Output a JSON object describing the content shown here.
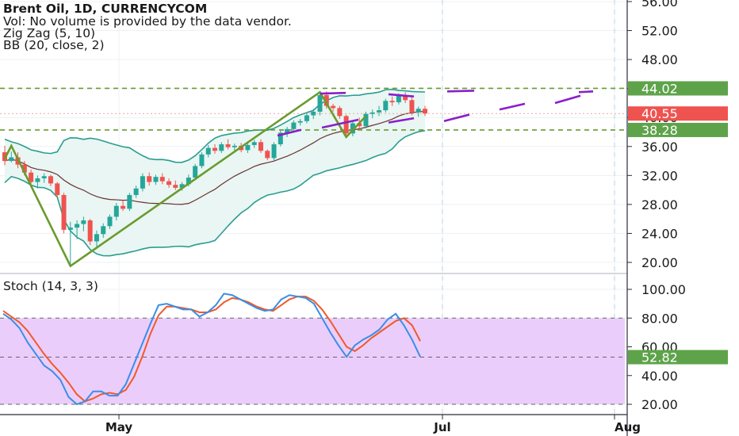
{
  "header": {
    "title": "Brent Oil, 1D, CURRENCYCOM",
    "vol": "Vol: No volume is provided by the data vendor.",
    "zigzag": "Zig Zag (5, 10)",
    "bb": "BB (20, close, 2)"
  },
  "stoch_panel": {
    "label": "Stoch (14, 3, 3)"
  },
  "colors": {
    "up": "#26a69a",
    "down": "#ef5350",
    "zigzag": "#6a9b2e",
    "bb_band": "#2a9d8f",
    "bb_fill": "#e9f6f3",
    "bb_basis": "#6b3030",
    "pattern": "#8a1fc9",
    "level_badge": "#5ea34a",
    "price_badge": "#ef5350",
    "stoch_k": "#3a8ee6",
    "stoch_d": "#f05a2a",
    "stoch_bg": "#ebcdfb"
  },
  "chart_data": [
    {
      "type": "candlestick",
      "title": "Brent Oil, 1D, CURRENCYCOM",
      "y_ticks": [
        "56.00",
        "52.00",
        "48.00",
        "44.00",
        "40.00",
        "36.00",
        "32.00",
        "28.00",
        "24.00",
        "20.00"
      ],
      "x_ticks": [
        "May",
        "Jul",
        "Aug"
      ],
      "ylim": [
        18.5,
        56.5
      ],
      "current_price": "40.55",
      "levels": [
        {
          "label": "44.02",
          "value": 44.02
        },
        {
          "label": "38.28",
          "value": 38.28
        }
      ],
      "candles": [
        [
          35.2,
          36.1,
          33.4,
          34.0
        ],
        [
          34.0,
          35.3,
          33.8,
          34.5
        ],
        [
          34.5,
          35.2,
          33.0,
          33.5
        ],
        [
          33.5,
          34.0,
          32.0,
          32.4
        ],
        [
          32.4,
          32.8,
          30.8,
          31.1
        ],
        [
          31.1,
          32.0,
          30.2,
          31.6
        ],
        [
          31.6,
          32.3,
          31.0,
          31.9
        ],
        [
          31.9,
          32.1,
          30.5,
          30.9
        ],
        [
          30.9,
          31.1,
          29.0,
          29.3
        ],
        [
          29.3,
          29.6,
          24.0,
          24.5
        ],
        [
          24.5,
          25.6,
          19.5,
          24.8
        ],
        [
          24.8,
          25.8,
          23.2,
          25.3
        ],
        [
          25.3,
          26.3,
          24.3,
          25.8
        ],
        [
          25.8,
          26.0,
          22.4,
          22.9
        ],
        [
          22.9,
          24.4,
          22.1,
          23.9
        ],
        [
          23.9,
          25.4,
          23.4,
          25.0
        ],
        [
          25.0,
          26.6,
          24.6,
          26.3
        ],
        [
          26.3,
          28.2,
          25.8,
          27.8
        ],
        [
          27.8,
          28.6,
          27.1,
          27.4
        ],
        [
          27.4,
          29.6,
          27.1,
          29.3
        ],
        [
          29.3,
          30.6,
          28.9,
          30.2
        ],
        [
          30.2,
          32.3,
          29.8,
          31.9
        ],
        [
          31.9,
          32.4,
          30.6,
          31.1
        ],
        [
          31.1,
          32.1,
          30.7,
          31.8
        ],
        [
          31.8,
          32.3,
          30.8,
          31.2
        ],
        [
          31.2,
          31.6,
          30.3,
          30.7
        ],
        [
          30.7,
          31.3,
          30.0,
          30.3
        ],
        [
          30.3,
          31.1,
          29.9,
          30.8
        ],
        [
          30.8,
          32.1,
          30.5,
          31.7
        ],
        [
          31.7,
          33.6,
          31.5,
          33.3
        ],
        [
          33.3,
          35.2,
          33.0,
          34.9
        ],
        [
          34.9,
          36.2,
          34.5,
          35.8
        ],
        [
          35.8,
          36.3,
          35.0,
          35.4
        ],
        [
          35.4,
          36.6,
          35.1,
          36.3
        ],
        [
          36.3,
          37.0,
          35.6,
          35.9
        ],
        [
          35.9,
          36.4,
          35.3,
          36.1
        ],
        [
          36.1,
          36.5,
          35.2,
          35.5
        ],
        [
          35.5,
          36.4,
          35.1,
          36.2
        ],
        [
          36.2,
          36.9,
          35.8,
          36.6
        ],
        [
          36.6,
          37.0,
          35.1,
          35.4
        ],
        [
          35.4,
          35.6,
          34.1,
          34.4
        ],
        [
          34.4,
          36.6,
          34.1,
          36.3
        ],
        [
          36.3,
          38.2,
          36.0,
          37.9
        ],
        [
          37.9,
          38.7,
          37.3,
          38.4
        ],
        [
          38.4,
          39.6,
          38.0,
          39.3
        ],
        [
          39.3,
          39.8,
          38.9,
          39.5
        ],
        [
          39.5,
          40.6,
          39.2,
          40.3
        ],
        [
          40.3,
          41.2,
          39.8,
          40.8
        ],
        [
          40.8,
          43.5,
          40.3,
          43.1
        ],
        [
          43.1,
          43.6,
          41.2,
          41.6
        ],
        [
          41.6,
          41.9,
          40.8,
          41.3
        ],
        [
          41.3,
          41.6,
          39.8,
          40.2
        ],
        [
          40.2,
          40.4,
          37.3,
          37.8
        ],
        [
          37.8,
          39.6,
          37.4,
          39.2
        ],
        [
          39.2,
          40.0,
          38.4,
          38.8
        ],
        [
          38.8,
          40.8,
          38.5,
          40.5
        ],
        [
          40.5,
          41.1,
          39.9,
          40.7
        ],
        [
          40.7,
          41.6,
          40.2,
          41.0
        ],
        [
          41.0,
          42.6,
          40.7,
          42.3
        ],
        [
          42.3,
          42.9,
          41.6,
          42.1
        ],
        [
          42.1,
          43.3,
          41.8,
          43.0
        ],
        [
          43.0,
          43.5,
          42.0,
          42.4
        ],
        [
          42.4,
          42.8,
          40.3,
          40.7
        ],
        [
          40.7,
          41.5,
          40.1,
          41.2
        ],
        [
          41.2,
          41.6,
          40.2,
          40.55
        ]
      ]
    },
    {
      "type": "line",
      "title": "Stoch (14, 3, 3)",
      "y_ticks": [
        "100.00",
        "80.00",
        "60.00",
        "40.00",
        "20.00"
      ],
      "ylim": [
        15,
        108
      ],
      "current_value": "52.82",
      "levels": [
        80,
        52.82,
        20
      ],
      "series": [
        {
          "name": "%K",
          "values": [
            83,
            79,
            73,
            63,
            55,
            47,
            43,
            37,
            25,
            20,
            22,
            29,
            29,
            26,
            26,
            34,
            48,
            62,
            76,
            89,
            90,
            88,
            86,
            86,
            81,
            84,
            89,
            97,
            96,
            93,
            90,
            87,
            85,
            86,
            93,
            96,
            95,
            94,
            90,
            80,
            70,
            61,
            53,
            61,
            65,
            68,
            72,
            79,
            83,
            75,
            65,
            53
          ]
        },
        {
          "name": "%D",
          "values": [
            85,
            81,
            77,
            71,
            63,
            55,
            48,
            42,
            35,
            27,
            22,
            24,
            27,
            28,
            27,
            30,
            39,
            53,
            69,
            82,
            88,
            88,
            87,
            86,
            84,
            84,
            86,
            91,
            94,
            93,
            91,
            88,
            86,
            85,
            89,
            93,
            95,
            95,
            92,
            86,
            78,
            69,
            60,
            57,
            61,
            66,
            70,
            74,
            78,
            80,
            75,
            64
          ]
        }
      ]
    }
  ]
}
